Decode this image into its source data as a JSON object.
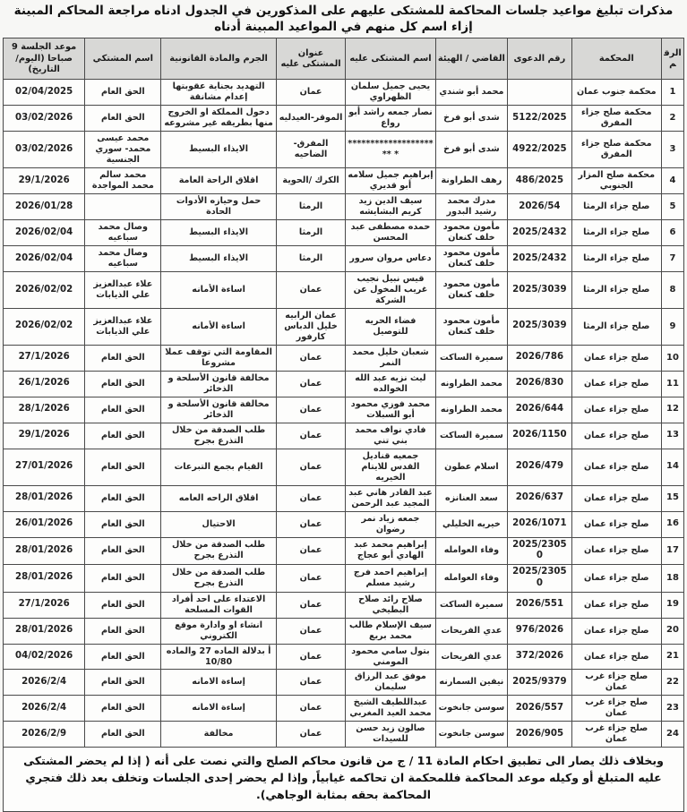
{
  "title": "مذكرات تبليغ مواعيد جلسات المحاكمة للمشتكى عليهم على المذكورين في الجدول ادناه مراجعة المحاكم المبينة إزاء اسم كل منهم في المواعيد المبينة أدناه",
  "table": {
    "headers": [
      "الرقم",
      "المحكمة",
      "رقم الدعوى",
      "القاضي / الهيئة",
      "اسم المشتكى عليه",
      "عنوان المشتكى عليه",
      "الجرم والمادة القانونية",
      "اسم المشتكي",
      "موعد الجلسة 9 صباحا (اليوم/التاريخ)"
    ],
    "rows": [
      {
        "num": "1",
        "court": "محكمة جنوب عمان",
        "case_no": "",
        "judge": "محمد أبو شندي",
        "defendant": "يحيى جميل سلمان الظهراوي",
        "address": "عمان",
        "crime": "التهديد بجناية عقوبتها إعدام مشانقة",
        "complainant": "الحق العام",
        "date": "02/04/2025"
      },
      {
        "num": "2",
        "court": "محكمة صلح جزاء المفرق",
        "case_no": "5122/2025",
        "judge": "شدى أبو فرخ",
        "defendant": "نصار جمعه راشد أبو رواع",
        "address": "الموقر-العيدليه",
        "crime": "دخول المملكة او الخروج منها بطريقه غير مشروعه",
        "complainant": "الحق العام",
        "date": "03/02/2026"
      },
      {
        "num": "3",
        "court": "محكمة صلح جزاء المفرق",
        "case_no": "4922/2025",
        "judge": "شدى أبو فرخ",
        "defendant": "******************** **",
        "address": "المفرق- الضاحيه",
        "crime": "الايذاء البسيط",
        "complainant": "محمد عيسى محمد- سوري الجنسية",
        "date": "03/02/2026"
      },
      {
        "num": "4",
        "court": "محكمة صلح المزار الجنوبي",
        "case_no": "486/2025",
        "judge": "رهف الطراونة",
        "defendant": "إبراهيم جميل سلامه أبو قديري",
        "address": "الكرك /الحوية",
        "crime": "اقلاق الراحة العامة",
        "complainant": "محمد سالم محمد المواجدة",
        "date": "29/1/2026"
      },
      {
        "num": "5",
        "court": "صلح جزاء الرمثا",
        "case_no": "2026/54",
        "judge": "مدرك محمد رشيد البدور",
        "defendant": "سيف الدين زيد كريم البشايشه",
        "address": "الرمثا",
        "crime": "حمل وحيازه الأدوات الحادة",
        "complainant": "",
        "date": "2026/01/28"
      },
      {
        "num": "6",
        "court": "صلح جزاء الرمثا",
        "case_no": "2025/2432",
        "judge": "مأمون محمود خلف كنعان",
        "defendant": "حمده مصطفى عبد المحسن",
        "address": "الرمثا",
        "crime": "الايذاء البسيط",
        "complainant": "وصال محمد سباعيه",
        "date": "2026/02/04"
      },
      {
        "num": "7",
        "court": "صلح جزاء الرمثا",
        "case_no": "2025/2432",
        "judge": "مأمون محمود خلف كنعان",
        "defendant": "دعاس مروان سرور",
        "address": "الرمثا",
        "crime": "الايذاء البسيط",
        "complainant": "وصال محمد سباعيه",
        "date": "2026/02/04"
      },
      {
        "num": "8",
        "court": "صلح جزاء الرمثا",
        "case_no": "2025/3039",
        "judge": "مأمون محمود خلف كنعان",
        "defendant": "قيس نبيل نجيب غريب المخول عن الشركة",
        "address": "عمان",
        "crime": "اساءة الأمانه",
        "complainant": "علاء عبدالعزيز علي الذيابات",
        "date": "2026/02/02"
      },
      {
        "num": "9",
        "court": "صلح جزاء الرمثا",
        "case_no": "2025/3039",
        "judge": "مأمون محمود خلف كنعان",
        "defendant": "فضاء الحريه للتوصيل",
        "address": "عمان الرابيه خليل الدباس كارفور",
        "crime": "اساءة الأمانه",
        "complainant": "علاء عبدالعزيز علي الذيابات",
        "date": "2026/02/02"
      },
      {
        "num": "10",
        "court": "صلح جزاء عمان",
        "case_no": "2026/786",
        "judge": "سميرة الساكت",
        "defendant": "شعبان خليل محمد النمر",
        "address": "عمان",
        "crime": "المقاومة التي توقف عملا مشروعا",
        "complainant": "الحق العام",
        "date": "27/1/2026"
      },
      {
        "num": "11",
        "court": "صلح جزاء عمان",
        "case_no": "2026/830",
        "judge": "محمد الطراونه",
        "defendant": "ليث نزيه عبد الله الخوالده",
        "address": "عمان",
        "crime": "مخالفة قانون الأسلحة و الذخائر",
        "complainant": "الحق العام",
        "date": "26/1/2026"
      },
      {
        "num": "12",
        "court": "صلح جزاء عمان",
        "case_no": "2026/644",
        "judge": "محمد الطراونه",
        "defendant": "محمد فوزي محمود أبو السبلات",
        "address": "عمان",
        "crime": "مخالفة قانون الأسلحة و الذخائر",
        "complainant": "الحق العام",
        "date": "28/1/2026"
      },
      {
        "num": "13",
        "court": "صلح جزاء عمان",
        "case_no": "2026/1150",
        "judge": "سميرة الساكت",
        "defendant": "فادي نواف محمد بني تني",
        "address": "عمان",
        "crime": "طلب الصدقة من خلال التذرع بجرح",
        "complainant": "الحق العام",
        "date": "29/1/2026"
      },
      {
        "num": "14",
        "court": "صلح جزاء عمان",
        "case_no": "2026/479",
        "judge": "اسلام عطون",
        "defendant": "جمعيه قناديل القدس للايتام الخيريه",
        "address": "عمان",
        "crime": "القيام بجمع التبرعات",
        "complainant": "الحق العام",
        "date": "27/01/2026"
      },
      {
        "num": "15",
        "court": "صلح جزاء عمان",
        "case_no": "2026/637",
        "judge": "سعد العنانزه",
        "defendant": "عبد القادر هاني عبد المجيد  عبد الرحمن",
        "address": "عمان",
        "crime": "اقلاق الراحه العامه",
        "complainant": "الحق العام",
        "date": "28/01/2026"
      },
      {
        "num": "16",
        "court": "صلح جزاء عمان",
        "case_no": "2026/1071",
        "judge": "خيريه الخليلي",
        "defendant": "جمعه زياد نمر رضوان",
        "address": "عمان",
        "crime": "الاحتيال",
        "complainant": "الحق العام",
        "date": "26/01/2026"
      },
      {
        "num": "17",
        "court": "صلح جزاء عمان",
        "case_no": "2025/23050",
        "judge": "وفاء العوامله",
        "defendant": "إبراهيم محمد عبد الهادي أبو عجاج",
        "address": "عمان",
        "crime": "طلب الصدقة من خلال التذرع بجرح",
        "complainant": "الحق العام",
        "date": "28/01/2026"
      },
      {
        "num": "18",
        "court": "صلح جزاء عمان",
        "case_no": "2025/23050",
        "judge": "وفاء العوامله",
        "defendant": "إبراهيم احمد فرج رشيد مسلم",
        "address": "عمان",
        "crime": "طلب الصدقة من خلال التذرع بجرح",
        "complainant": "الحق العام",
        "date": "28/01/2026"
      },
      {
        "num": "19",
        "court": "صلح جزاء عمان",
        "case_no": "2026/551",
        "judge": "سميرة الساكت",
        "defendant": "صلاح رائد صلاح البطيخي",
        "address": "عمان",
        "crime": "الاعتداء على احد أفراد القوات المسلحة",
        "complainant": "الحق العام",
        "date": "27/1/2026"
      },
      {
        "num": "20",
        "court": "صلح جزاء عمان",
        "case_no": "976/2026",
        "judge": "عدي الفريحات",
        "defendant": "سيف الإسلام طالب محمد بريع",
        "address": "عمان",
        "crime": "انشاء او وادارة موقع الكتروني",
        "complainant": "الحق العام",
        "date": "28/01/2026"
      },
      {
        "num": "21",
        "court": "صلح جزاء عمان",
        "case_no": "372/2026",
        "judge": "عدي الفريحات",
        "defendant": "بتول سامي محمود المومني",
        "address": "عمان",
        "crime": "أ بدلالة الماده 27 والماده 10/80",
        "complainant": "الحق العام",
        "date": "04/02/2026"
      },
      {
        "num": "22",
        "court": "صلح جزاء غرب عمان",
        "case_no": "2025/9379",
        "judge": "نيفين السمارنه",
        "defendant": "موفق عبد الرزاق سليمان",
        "address": "عمان",
        "crime": "إساءة الامانه",
        "complainant": "الحق العام",
        "date": "2026/2/4"
      },
      {
        "num": "23",
        "court": "صلح جزاء غرب عمان",
        "case_no": "2026/557",
        "judge": "سوسن جانخوت",
        "defendant": "عبداللطيف الشيخ محمد العيد المغربي",
        "address": "عمان",
        "crime": "إساءة الامانه",
        "complainant": "الحق العام",
        "date": "2026/2/4"
      },
      {
        "num": "24",
        "court": "صلح جزاء غرب عمان",
        "case_no": "2026/905",
        "judge": "سوسن جانخوت",
        "defendant": "صالون زيد حسن للسيدات",
        "address": "عمان",
        "crime": "مخالفة",
        "complainant": "الحق العام",
        "date": "2026/2/9"
      }
    ]
  },
  "footer": "وبخلاف ذلك يصار الى تطبيق احكام المادة 11 / ج من قانون محاكم الصلح والتي نصت على أنه ( إذا لم يحضر المشتكى عليه المتبلغ أو وكيله موعد المحاكمة فللمحكمة ان تحاكمه غيابياً, وإذا لم يحضر إحدى الجلسات وتخلف بعد ذلك فتجري المحاكمة بحقه بمثابة الوجاهي).",
  "colors": {
    "header_bg": "#d8d8d6",
    "border": "#4a4a4a",
    "text": "#1c1c1c",
    "page_bg": "#f7f7f5"
  }
}
